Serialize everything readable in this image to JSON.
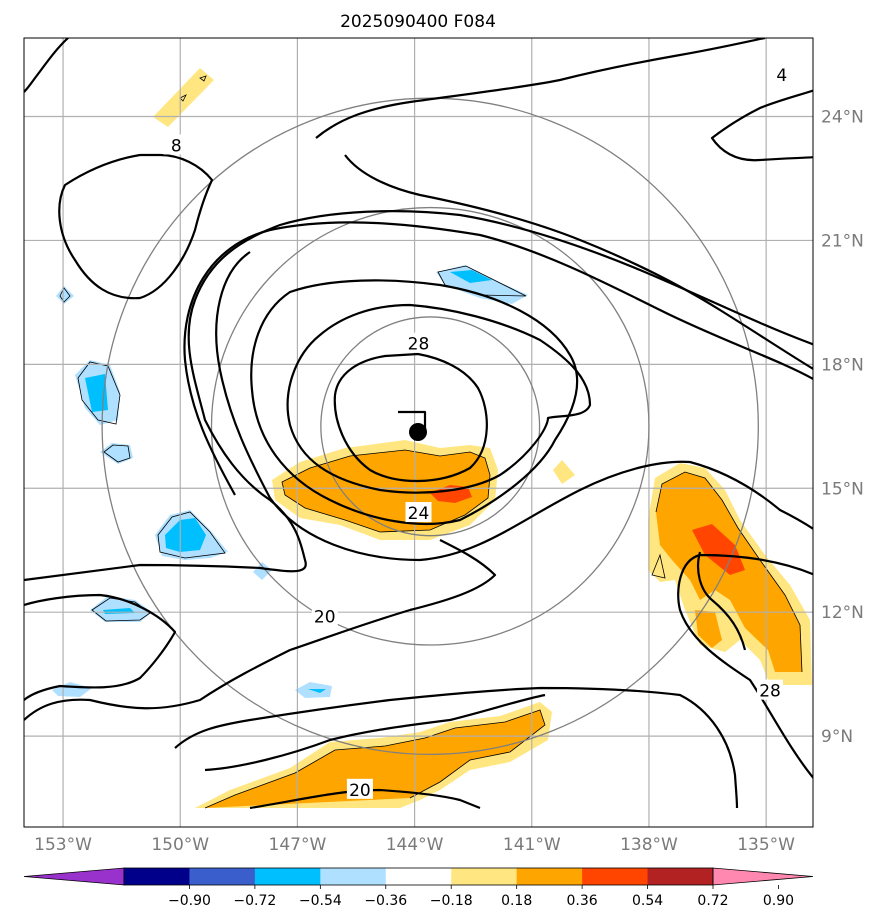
{
  "chart_data": {
    "type": "map",
    "title": "2025090400 F084",
    "xlim": [
      -154,
      -133.8
    ],
    "ylim": [
      6.8,
      25.9
    ],
    "x_ticks": [
      {
        "value": -153,
        "label": "153°W"
      },
      {
        "value": -150,
        "label": "150°W"
      },
      {
        "value": -147,
        "label": "147°W"
      },
      {
        "value": -144,
        "label": "144°W"
      },
      {
        "value": -141,
        "label": "141°W"
      },
      {
        "value": -138,
        "label": "138°W"
      },
      {
        "value": -135,
        "label": "135°W"
      }
    ],
    "y_ticks": [
      {
        "value": 9,
        "label": "9°N"
      },
      {
        "value": 12,
        "label": "12°N"
      },
      {
        "value": 15,
        "label": "15°N"
      },
      {
        "value": 18,
        "label": "18°N"
      },
      {
        "value": 21,
        "label": "21°N"
      },
      {
        "value": 24,
        "label": "24°N"
      }
    ],
    "grid": true,
    "storm_center": {
      "lon": -143.6,
      "lat": 16.5
    },
    "range_rings_deg": [
      2.8,
      5.6,
      8.4
    ],
    "contour_labels": [
      {
        "text": "28",
        "lon": -143.9,
        "lat": 18.5
      },
      {
        "text": "24",
        "lon": -143.9,
        "lat": 14.4
      },
      {
        "text": "20",
        "lon": -146.3,
        "lat": 11.9
      },
      {
        "text": "20",
        "lon": -145.4,
        "lat": 7.7
      },
      {
        "text": "8",
        "lon": -150.1,
        "lat": 23.3
      },
      {
        "text": "4",
        "lon": -134.6,
        "lat": 25.0
      },
      {
        "text": "28",
        "lon": -134.9,
        "lat": 10.1
      }
    ],
    "colorbar": {
      "ticks": [
        "−0.90",
        "−0.72",
        "−0.54",
        "−0.36",
        "−0.18",
        "0.18",
        "0.36",
        "0.54",
        "0.72",
        "0.90"
      ],
      "colors": [
        "#9932cc",
        "#00008b",
        "#3a5fcd",
        "#00bfff",
        "#b0e0ff",
        "#ffffff",
        "#ffe680",
        "#ffa500",
        "#ff4500",
        "#b22222",
        "#ff88b0"
      ],
      "extend": "both"
    }
  }
}
